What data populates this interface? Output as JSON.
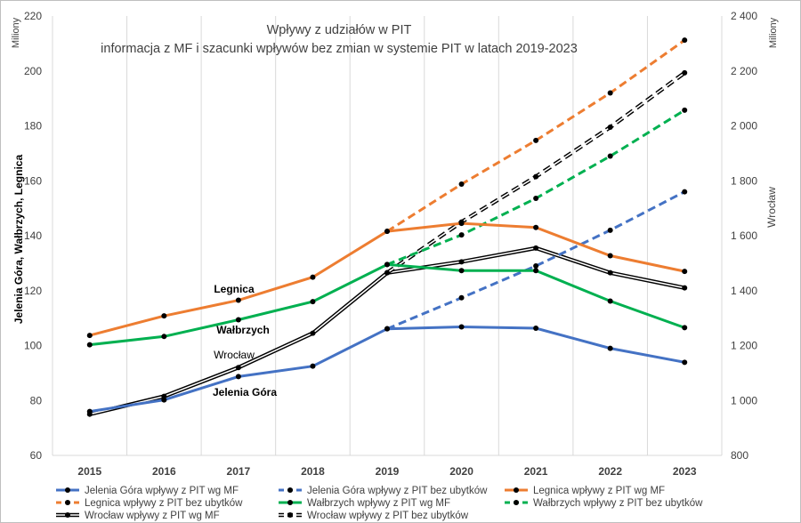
{
  "chart_data": {
    "type": "line",
    "title": [
      "Wpływy z udziałów w PIT",
      "informacja z MF  i  szacunki wpływów bez zmian w systemie PIT w latach 2019-2023"
    ],
    "x": [
      "2015",
      "2016",
      "2017",
      "2018",
      "2019",
      "2020",
      "2021",
      "2022",
      "2023"
    ],
    "y_left": {
      "label": "Jelenia Góra,  Wałbrzych,  Legnica",
      "unit": "Miliony",
      "range": [
        60,
        220
      ],
      "ticks": [
        "60",
        "80",
        "100",
        "120",
        "140",
        "160",
        "180",
        "200",
        "220"
      ]
    },
    "y_right": {
      "label": "Wrocław",
      "unit": "Miliony",
      "range": [
        800,
        2400
      ],
      "ticks": [
        "800",
        "1 000",
        "1 200",
        "1 400",
        "1 600",
        "1 800",
        "2 000",
        "2 200",
        "2 400"
      ]
    },
    "grid": "vertical",
    "legend_position": "bottom",
    "series": [
      {
        "name": "Jelenia Góra wpływy z PIT wg MF",
        "axis": "left",
        "style": "solid",
        "color": "#4472c4",
        "values": [
          76,
          80.2,
          88.7,
          92.5,
          106.1,
          106.8,
          106.3,
          99,
          93.9
        ]
      },
      {
        "name": "Jelenia Góra wpływy z PIT bez ubytków",
        "axis": "left",
        "style": "dashed",
        "color": "#4472c4",
        "values": [
          null,
          null,
          null,
          null,
          106.1,
          117.4,
          129,
          142,
          156
        ]
      },
      {
        "name": "Legnica wpływy z PIT wg MF",
        "axis": "left",
        "style": "solid",
        "color": "#ed7d31",
        "values": [
          103.7,
          110.8,
          116.5,
          124.9,
          141.6,
          144.5,
          143,
          132.7,
          127
        ]
      },
      {
        "name": "Legnica wpływy z PIT bez ubytków",
        "axis": "left",
        "style": "dashed",
        "color": "#ed7d31",
        "values": [
          null,
          null,
          null,
          null,
          141.6,
          158.8,
          174.7,
          192,
          211.2
        ]
      },
      {
        "name": "Wałbrzych wpływy z PIT wg MF",
        "axis": "left",
        "style": "solid",
        "color": "#00b050",
        "values": [
          100.3,
          103.3,
          109.4,
          116,
          129.5,
          127.3,
          127.3,
          116.2,
          106.5
        ]
      },
      {
        "name": "Wałbrzych wpływy z PIT bez ubytków",
        "axis": "left",
        "style": "dashed",
        "color": "#00b050",
        "values": [
          null,
          null,
          null,
          null,
          129.5,
          140.3,
          153.6,
          169,
          185.7
        ]
      },
      {
        "name": "Wrocław wpływy z PIT wg MF",
        "axis": "right",
        "style": "double",
        "color": "#000000",
        "values": [
          950,
          1015,
          1120,
          1245,
          1465,
          1505,
          1555,
          1465,
          1410
        ]
      },
      {
        "name": "Wrocław wpływy z PIT bez ubytków",
        "axis": "right",
        "style": "double-dashed",
        "color": "#000000",
        "values": [
          null,
          null,
          null,
          null,
          1465,
          1650,
          1815,
          1995,
          2193
        ]
      }
    ],
    "annotations": [
      {
        "text": "Legnica",
        "color": "#ed7d31"
      },
      {
        "text": "Wałbrzych",
        "color": "#00b050"
      },
      {
        "text": "Wrocław",
        "color": "#000000"
      },
      {
        "text": "Jelenia Góra",
        "color": "#4472c4"
      }
    ]
  }
}
